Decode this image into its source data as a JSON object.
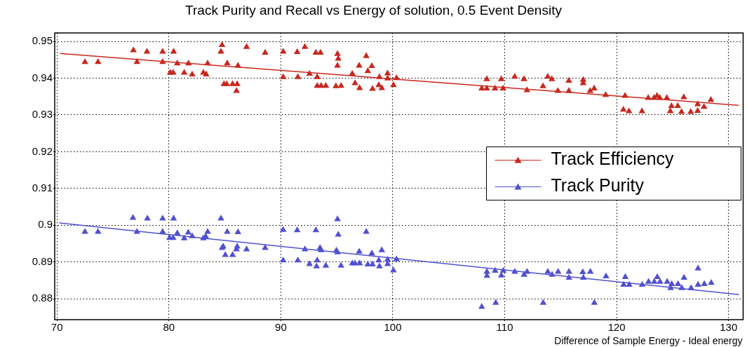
{
  "chart_data": {
    "type": "scatter",
    "title": "Track Purity and Recall vs Energy of solution, 0.5 Event Density",
    "xlabel": "Difference of Sample Energy - Ideal energy",
    "xlim": [
      69.8,
      131.3
    ],
    "xticks": [
      70,
      80,
      90,
      100,
      110,
      120,
      130
    ],
    "ylim": [
      0.8743,
      0.9523
    ],
    "yticks": [
      0.88,
      0.89,
      0.9,
      0.91,
      0.92,
      0.93,
      0.94,
      0.95
    ],
    "grid": true,
    "legend": "right",
    "marker": "triangle",
    "series": [
      {
        "name": "Track Efficiency",
        "color": "#c8281e",
        "x": [
          72.5,
          73.67,
          76.83,
          77.15,
          78.04,
          79.44,
          79.44,
          80.42,
          80.12,
          80.38,
          80.75,
          81.37,
          81.75,
          82.08,
          83.08,
          83.33,
          83.46,
          84.75,
          84.65,
          84.92,
          85.17,
          85.21,
          85.69,
          86.1,
          86.04,
          86.17,
          86.94,
          88.6,
          90.21,
          90.21,
          91.46,
          91.52,
          92.15,
          92.56,
          93.13,
          93.54,
          93.25,
          93.25,
          93.6,
          94.02,
          95.06,
          95.13,
          95.06,
          94.92,
          95.38,
          96.38,
          96.63,
          97.04,
          97.0,
          97.63,
          97.77,
          98.13,
          98.19,
          98.81,
          98.75,
          99.02,
          99.54,
          99.54,
          100.06,
          100.33,
          107.95,
          108.4,
          108.4,
          109.13,
          109.69,
          109.85,
          110.89,
          111.72,
          111.99,
          113.42,
          113.84,
          114.21,
          114.75,
          115.73,
          115.73,
          117.01,
          117.01,
          117.63,
          117.99,
          119.02,
          120.75,
          120.6,
          121.1,
          122.26,
          122.82,
          123.34,
          123.61,
          123.86,
          124.48,
          124.9,
          124.79,
          125.46,
          125.79,
          126.0,
          126.62,
          127.24,
          127.24,
          127.8,
          128.42
        ],
        "values": [
          0.9444,
          0.9444,
          0.9476,
          0.9444,
          0.9472,
          0.9472,
          0.9444,
          0.9472,
          0.9415,
          0.9415,
          0.944,
          0.9415,
          0.944,
          0.941,
          0.9415,
          0.941,
          0.944,
          0.949,
          0.9472,
          0.9384,
          0.9384,
          0.944,
          0.9384,
          0.9384,
          0.9365,
          0.9434,
          0.9485,
          0.9469,
          0.9472,
          0.9403,
          0.9471,
          0.9403,
          0.9485,
          0.9412,
          0.9469,
          0.9469,
          0.9403,
          0.9379,
          0.9379,
          0.9379,
          0.9466,
          0.9453,
          0.9434,
          0.9378,
          0.9379,
          0.9412,
          0.9386,
          0.9373,
          0.9434,
          0.946,
          0.9419,
          0.9433,
          0.9371,
          0.9403,
          0.9381,
          0.9373,
          0.9413,
          0.9399,
          0.9381,
          0.94,
          0.9372,
          0.9372,
          0.9397,
          0.9372,
          0.9397,
          0.9372,
          0.9404,
          0.9397,
          0.9367,
          0.9378,
          0.9404,
          0.9397,
          0.9365,
          0.9365,
          0.9393,
          0.9395,
          0.9386,
          0.9365,
          0.9372,
          0.9354,
          0.9352,
          0.9314,
          0.931,
          0.931,
          0.9346,
          0.9346,
          0.9352,
          0.9346,
          0.9346,
          0.9324,
          0.931,
          0.9324,
          0.9308,
          0.9348,
          0.9308,
          0.9329,
          0.9311,
          0.9322,
          0.9341
        ]
      },
      {
        "name": "Track Purity",
        "color": "#5050d2",
        "x": [
          72.5,
          73.67,
          76.79,
          77.15,
          78.08,
          79.44,
          79.44,
          80.42,
          80.06,
          80.38,
          80.75,
          81.37,
          81.73,
          82.08,
          83.08,
          83.29,
          83.46,
          84.65,
          84.85,
          84.75,
          85.04,
          85.21,
          85.69,
          86.04,
          86.1,
          86.17,
          86.94,
          88.6,
          90.21,
          90.21,
          91.46,
          91.52,
          92.15,
          92.56,
          93.13,
          93.25,
          93.19,
          93.5,
          93.6,
          94.02,
          95.06,
          95.13,
          94.96,
          95.06,
          95.38,
          96.38,
          96.63,
          97.04,
          97.0,
          97.63,
          97.77,
          98.13,
          98.19,
          98.75,
          98.81,
          99.02,
          99.54,
          99.54,
          100.06,
          100.33,
          107.95,
          108.41,
          108.41,
          109.14,
          109.2,
          109.7,
          109.87,
          110.9,
          111.73,
          112.0,
          113.44,
          113.85,
          114.23,
          114.77,
          115.74,
          115.74,
          116.97,
          117.03,
          117.65,
          118.01,
          119.05,
          120.77,
          120.62,
          121.12,
          122.28,
          122.85,
          123.36,
          123.63,
          123.88,
          124.51,
          124.92,
          124.82,
          125.48,
          125.82,
          126.02,
          126.65,
          127.27,
          127.27,
          127.83,
          128.45
        ],
        "values": [
          0.8982,
          0.8982,
          0.902,
          0.8982,
          0.9018,
          0.9018,
          0.8982,
          0.9018,
          0.8965,
          0.8965,
          0.8978,
          0.8964,
          0.898,
          0.897,
          0.8964,
          0.8969,
          0.8982,
          0.9018,
          0.8942,
          0.8938,
          0.8919,
          0.8982,
          0.8919,
          0.8934,
          0.8942,
          0.8981,
          0.8934,
          0.8938,
          0.8987,
          0.8904,
          0.8986,
          0.8904,
          0.8934,
          0.8894,
          0.8986,
          0.8904,
          0.8888,
          0.8938,
          0.8932,
          0.889,
          0.9016,
          0.8974,
          0.8931,
          0.8926,
          0.889,
          0.8896,
          0.8896,
          0.8896,
          0.8928,
          0.8982,
          0.8893,
          0.8923,
          0.8893,
          0.8904,
          0.8888,
          0.8932,
          0.8906,
          0.8894,
          0.8877,
          0.8907,
          0.8778,
          0.8873,
          0.8862,
          0.8876,
          0.8789,
          0.8863,
          0.8876,
          0.8873,
          0.8865,
          0.8873,
          0.8789,
          0.8873,
          0.8865,
          0.8873,
          0.8873,
          0.8857,
          0.8872,
          0.8857,
          0.8873,
          0.8789,
          0.8861,
          0.8859,
          0.8838,
          0.8838,
          0.8838,
          0.8846,
          0.8846,
          0.8859,
          0.8846,
          0.8846,
          0.884,
          0.8829,
          0.884,
          0.8829,
          0.8857,
          0.8829,
          0.8882,
          0.8838,
          0.884,
          0.8843
        ]
      },
      {
        "type": "line",
        "color": "#c8281e",
        "marker": "none",
        "x": [
          70.27,
          130.9
        ],
        "values": [
          0.9467,
          0.9326
        ]
      },
      {
        "type": "line",
        "color": "#5050d2",
        "marker": "none",
        "x": [
          70.21,
          130.94
        ],
        "values": [
          0.9006,
          0.8811
        ]
      }
    ]
  }
}
